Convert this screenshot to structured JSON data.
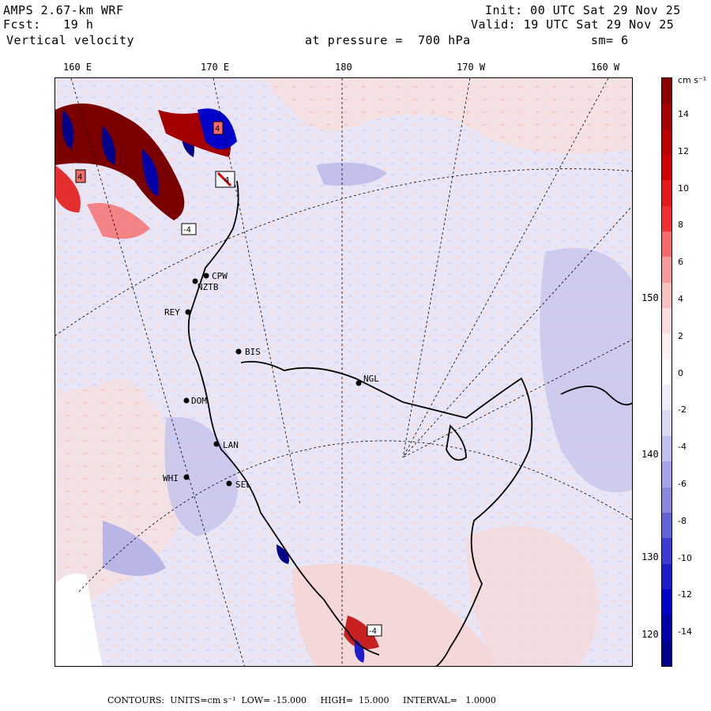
{
  "header": {
    "model": "AMPS 2.67-km WRF",
    "forecast": "Fcst:   19 h",
    "field": "Vertical velocity",
    "init": "Init: 00 UTC Sat 29 Nov 25",
    "valid": "Valid: 19 UTC Sat 29 Nov 25",
    "pressure": "at pressure =  700 hPa",
    "smoothing": "sm= 6"
  },
  "longitude_labels": [
    "160 E",
    "170 E",
    "180",
    "170 W",
    "160 W"
  ],
  "latitude_labels": [
    "150 W",
    "140 W",
    "130 W",
    "120 W"
  ],
  "stations": [
    {
      "code": "CPW"
    },
    {
      "code": "NZTB"
    },
    {
      "code": "REY"
    },
    {
      "code": "BIS"
    },
    {
      "code": "NGL"
    },
    {
      "code": "DOM"
    },
    {
      "code": "LAN"
    },
    {
      "code": "WHI"
    },
    {
      "code": "SEL"
    }
  ],
  "extrema_markers": [
    "4",
    "4",
    "4",
    "-4",
    "-4"
  ],
  "colorbar": {
    "units": "cm s⁻¹",
    "tick_labels": [
      "14",
      "12",
      "10",
      "8",
      "6",
      "4",
      "2",
      "0",
      "-2",
      "-4",
      "-6",
      "-8",
      "-10",
      "-12",
      "-14"
    ],
    "colors": [
      "#8b0000",
      "#a50000",
      "#bb0000",
      "#d00000",
      "#e41a1a",
      "#f03030",
      "#f56a6a",
      "#f79a9a",
      "#f9c0c0",
      "#fbdcdc",
      "#fdf0f0",
      "#ffffff",
      "#eeeefb",
      "#d9d9f4",
      "#c0c0ee",
      "#a4a4e6",
      "#8888de",
      "#6464d6",
      "#3c3cd0",
      "#1e1ec8",
      "#0000c8",
      "#0000a8",
      "#000088"
    ]
  },
  "footer": {
    "contours": "CONTOURS:  UNITS=cm s⁻¹  LOW= -15.000     HIGH=  15.000     INTERVAL=   1.0000"
  }
}
